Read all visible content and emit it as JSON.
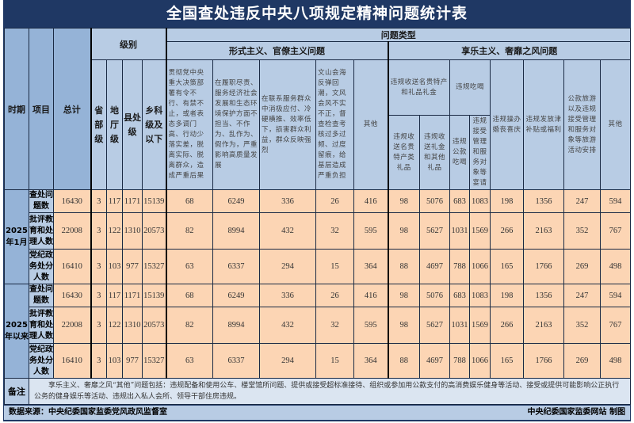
{
  "title": "全国查处违反中央八项规定精神问题统计表",
  "headers": {
    "period": "时期",
    "item": "项目",
    "total": "总计",
    "level": "级别",
    "levels": [
      "省部级",
      "地厅级",
      "县处级",
      "乡科级及以下"
    ],
    "problem_type": "问题类型",
    "formalism": "形式主义、官僚主义问题",
    "formalism_cols": [
      "贯彻党中央重大决策部署有令不行、有禁不止，或者表态多调门高、行动少落实差，脱离实际、脱离群众，造成严重后果",
      "在履职尽责、服务经济社会发展和生态环境保护方面不担当、不作为、乱作为、假作为，严重影响高质量发展",
      "在联系服务群众中消极应付、冷硬横推、效率低下，损害群众利益，群众反映强烈",
      "文山会海反弹回潮，文风会风不实不正，督查检查考核过多过频、过度留痕，给基层造成严重负担",
      "其他"
    ],
    "hedonism": "享乐主义、奢靡之风问题",
    "gifts": "违规收送名贵特产和礼品礼金",
    "gifts_sub": [
      "违规收送名贵特产类礼品",
      "违规收送礼金和其他礼品"
    ],
    "dining": "违规吃喝",
    "dining_sub": [
      "违规公款吃喝",
      "违规接受管理和服务对象等宴请"
    ],
    "hedonism_cols": [
      "违规操办婚丧喜庆",
      "违规发放津补贴或福利",
      "公款旅游以及违规接受管理和服务对象等旅游活动安排",
      "其他"
    ]
  },
  "periods": [
    {
      "label": "2025年1月",
      "rows": [
        {
          "item": "查处问题数",
          "values": [
            "16430",
            "3",
            "117",
            "1171",
            "15139",
            "68",
            "6249",
            "336",
            "26",
            "416",
            "98",
            "5076",
            "683",
            "1083",
            "198",
            "1356",
            "247",
            "594"
          ]
        },
        {
          "item": "批评教育和处理人数",
          "values": [
            "22008",
            "3",
            "122",
            "1310",
            "20573",
            "82",
            "8994",
            "432",
            "32",
            "595",
            "98",
            "5627",
            "1031",
            "1569",
            "266",
            "2163",
            "352",
            "767"
          ]
        },
        {
          "item": "党纪政务处分人数",
          "values": [
            "16410",
            "3",
            "103",
            "977",
            "15327",
            "63",
            "6337",
            "294",
            "15",
            "364",
            "88",
            "4697",
            "788",
            "1066",
            "165",
            "1766",
            "269",
            "498"
          ]
        }
      ]
    },
    {
      "label": "2025年以来",
      "rows": [
        {
          "item": "查处问题数",
          "values": [
            "16430",
            "3",
            "117",
            "1171",
            "15139",
            "68",
            "6249",
            "336",
            "26",
            "416",
            "98",
            "5076",
            "683",
            "1083",
            "198",
            "1356",
            "247",
            "594"
          ]
        },
        {
          "item": "批评教育和处理人数",
          "values": [
            "22008",
            "3",
            "122",
            "1310",
            "20573",
            "82",
            "8994",
            "432",
            "32",
            "595",
            "98",
            "5627",
            "1031",
            "1569",
            "266",
            "2163",
            "352",
            "767"
          ]
        },
        {
          "item": "党纪政务处分人数",
          "values": [
            "16410",
            "3",
            "103",
            "977",
            "15327",
            "63",
            "6337",
            "294",
            "15",
            "364",
            "88",
            "4697",
            "788",
            "1066",
            "165",
            "1766",
            "269",
            "498"
          ]
        }
      ]
    }
  ],
  "note": {
    "label": "备注",
    "text": "享乐主义、奢靡之风“其他”问题包括：违规配备和使用公车、楼堂馆所问题、提供或接受超标准接待、组织或参加用公款支付的高消费娱乐健身等活动、接受或提供可能影响公正执行公务的健身娱乐等活动、违规出入私人会所、领导干部住房违规。"
  },
  "source": "数据来源：中央纪委国家监委党风政风监督室",
  "credit": "中央纪委国家监委网站 制图"
}
